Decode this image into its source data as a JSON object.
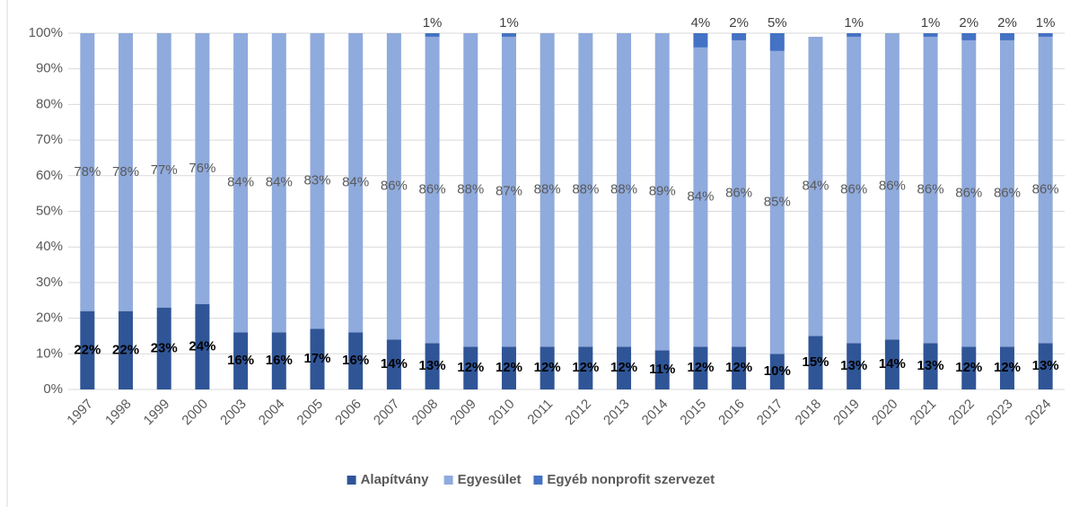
{
  "chart_data": {
    "type": "stacked_bar",
    "categories": [
      "1997",
      "1998",
      "1999",
      "2000",
      "2003",
      "2004",
      "2005",
      "2006",
      "2007",
      "2008",
      "2009",
      "2010",
      "2011",
      "2012",
      "2013",
      "2014",
      "2015",
      "2016",
      "2017",
      "2018",
      "2019",
      "2020",
      "2021",
      "2022",
      "2023",
      "2024"
    ],
    "series": [
      {
        "name": "Alapítvány",
        "color": "#2f5597",
        "values": [
          22,
          22,
          23,
          24,
          16,
          16,
          17,
          16,
          14,
          13,
          12,
          12,
          12,
          12,
          12,
          11,
          12,
          12,
          10,
          15,
          13,
          14,
          13,
          12,
          12,
          13
        ],
        "value_labels": [
          "22%",
          "22%",
          "23%",
          "24%",
          "16%",
          "16%",
          "17%",
          "16%",
          "14%",
          "13%",
          "12%",
          "12%",
          "12%",
          "12%",
          "12%",
          "11%",
          "12%",
          "12%",
          "10%",
          "15%",
          "13%",
          "14%",
          "13%",
          "12%",
          "12%",
          "13%"
        ]
      },
      {
        "name": "Egyesület",
        "color": "#8faadc",
        "values": [
          78,
          78,
          77,
          76,
          84,
          84,
          83,
          84,
          86,
          86,
          88,
          87,
          88,
          88,
          88,
          89,
          84,
          86,
          85,
          84,
          86,
          86,
          86,
          86,
          86,
          86
        ],
        "value_labels": [
          "78%",
          "78%",
          "77%",
          "76%",
          "84%",
          "84%",
          "83%",
          "84%",
          "86%",
          "86%",
          "88%",
          "87%",
          "88%",
          "88%",
          "88%",
          "89%",
          "84%",
          "86%",
          "85%",
          "84%",
          "86%",
          "86%",
          "86%",
          "86%",
          "86%",
          "86%"
        ]
      },
      {
        "name": "Egyéb nonprofit szervezet",
        "color": "#4472c4",
        "values": [
          null,
          null,
          null,
          null,
          null,
          null,
          null,
          null,
          null,
          1,
          null,
          1,
          null,
          null,
          null,
          null,
          4,
          2,
          5,
          null,
          1,
          null,
          1,
          2,
          2,
          1
        ],
        "value_labels": [
          null,
          null,
          null,
          null,
          null,
          null,
          null,
          null,
          null,
          "1%",
          null,
          "1%",
          null,
          null,
          null,
          null,
          "4%",
          "2%",
          "5%",
          null,
          "1%",
          null,
          "1%",
          "2%",
          "2%",
          "1%"
        ]
      }
    ],
    "ylim": [
      0,
      100
    ],
    "yticks": [
      {
        "value": 0,
        "label": "0%"
      },
      {
        "value": 10,
        "label": "10%"
      },
      {
        "value": 20,
        "label": "20%"
      },
      {
        "value": 30,
        "label": "30%"
      },
      {
        "value": 40,
        "label": "40%"
      },
      {
        "value": 50,
        "label": "50%"
      },
      {
        "value": 60,
        "label": "60%"
      },
      {
        "value": 70,
        "label": "70%"
      },
      {
        "value": 80,
        "label": "80%"
      },
      {
        "value": 90,
        "label": "90%"
      },
      {
        "value": 100,
        "label": "100%"
      }
    ],
    "grid": true,
    "legend": "bottom"
  }
}
